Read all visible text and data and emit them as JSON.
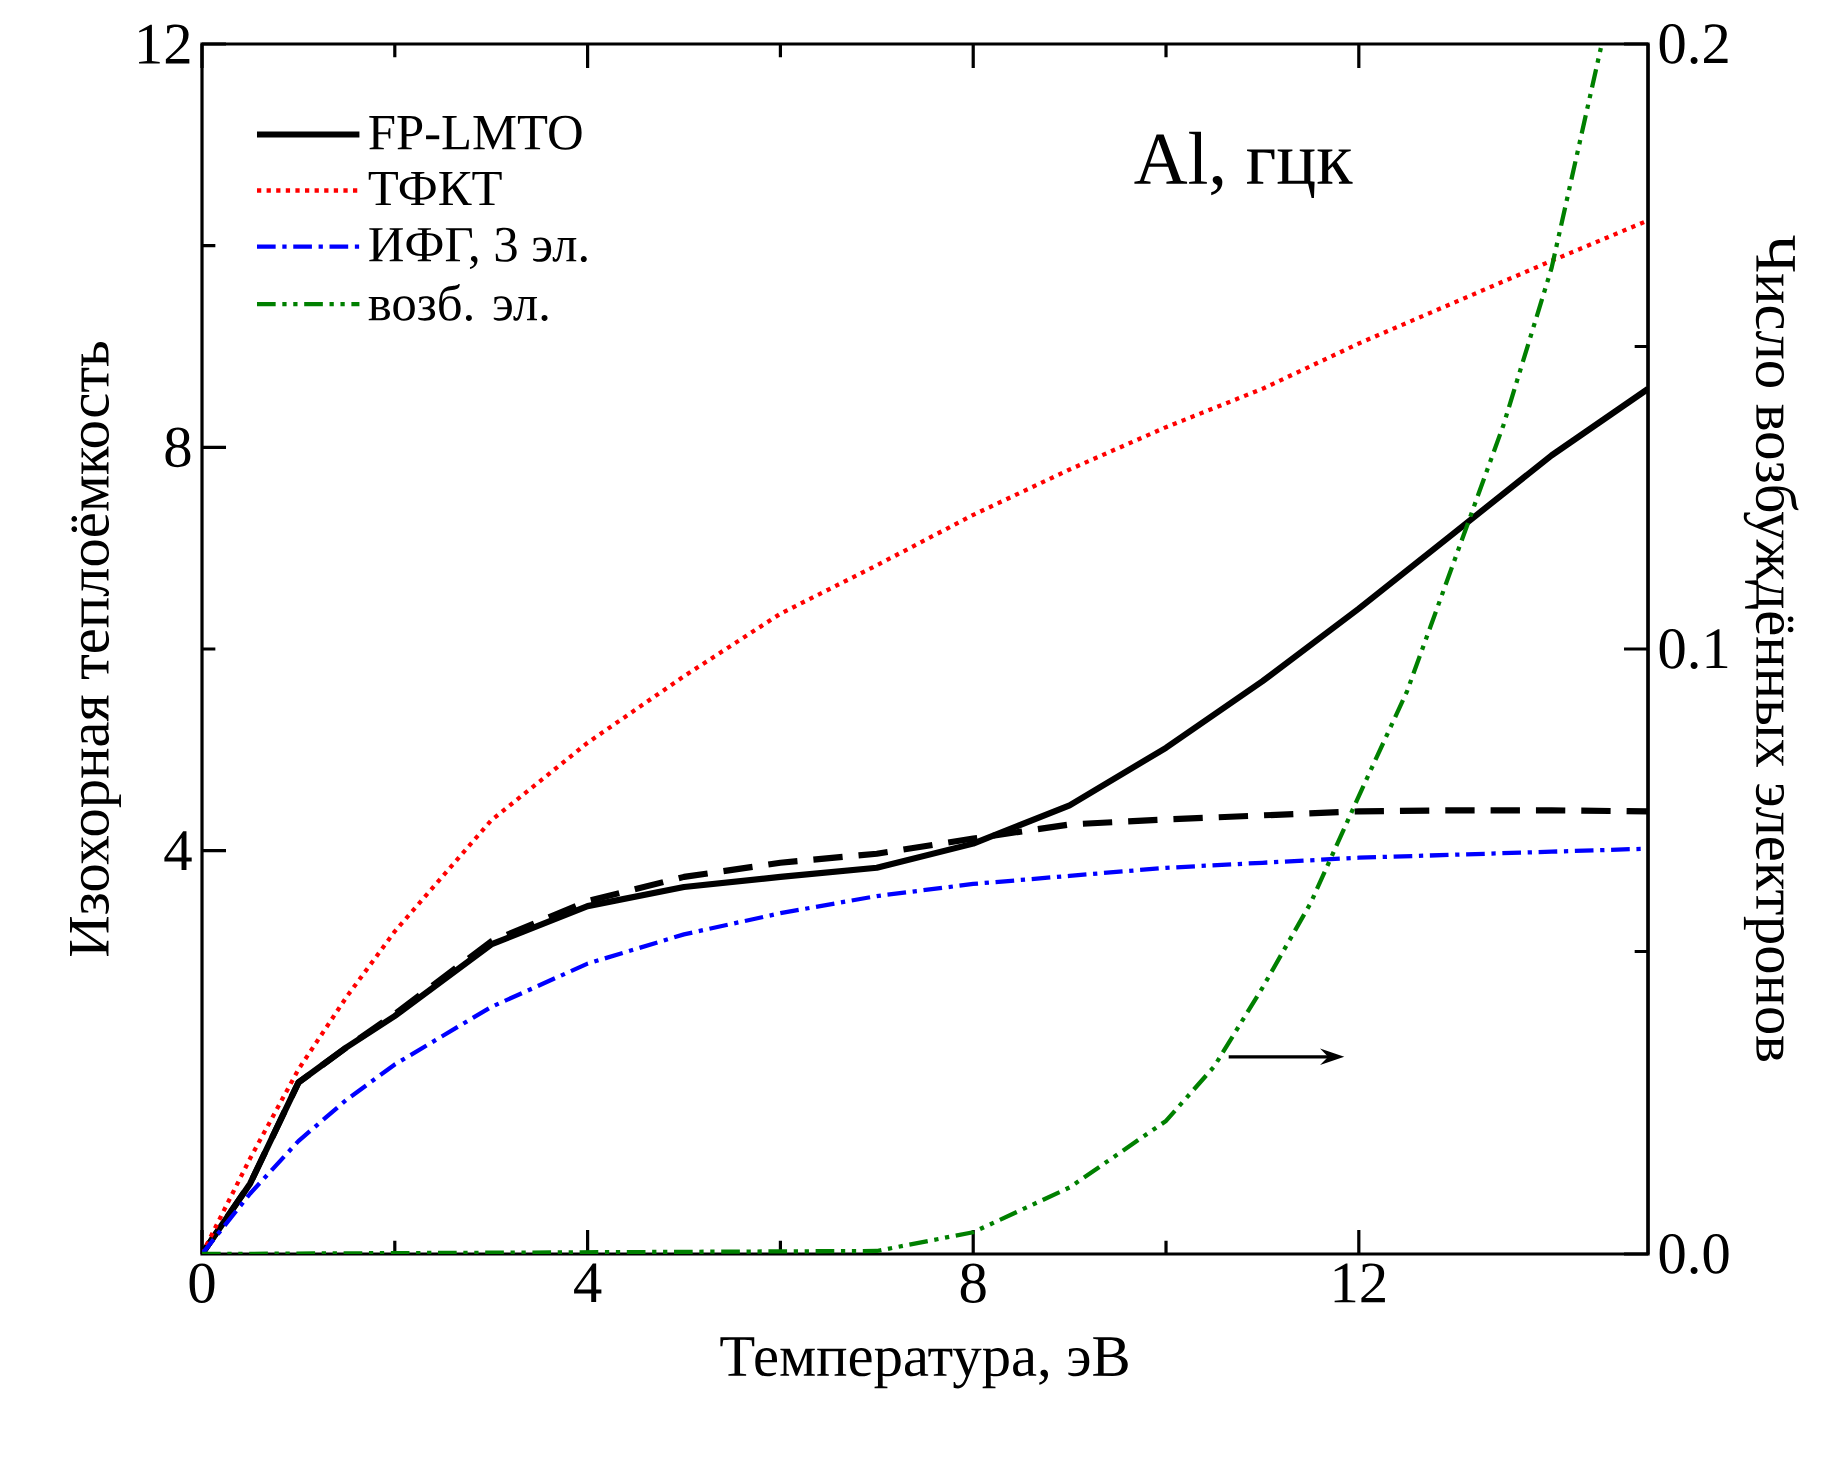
{
  "chart_data": {
    "type": "line",
    "xlabel": "Температура, эВ",
    "ylabel": "Изохорная теплоёмкость",
    "y2label": "Число возбуждённых электронов",
    "annotations": [
      "Al, гцк"
    ],
    "x": [
      0,
      0.5,
      1,
      1.5,
      2,
      3,
      4,
      5,
      6,
      7,
      8,
      9,
      10,
      11,
      12,
      13,
      14,
      15
    ],
    "series": [
      {
        "name": "FP-LMTO",
        "color": "#000000",
        "line_style": "solid",
        "values": [
          0,
          0.7,
          1.7,
          2.05,
          2.36,
          3.07,
          3.45,
          3.64,
          3.74,
          3.83,
          4.07,
          4.45,
          5.02,
          5.68,
          6.4,
          7.16,
          7.92,
          8.58
        ]
      },
      {
        "color": "#000000",
        "line_style": "dashed",
        "values": [
          0,
          0.7,
          1.7,
          2.05,
          2.38,
          3.1,
          3.5,
          3.74,
          3.88,
          3.97,
          4.12,
          4.26,
          4.31,
          4.35,
          4.39,
          4.4,
          4.4,
          4.39
        ]
      },
      {
        "name": "ТФКТ",
        "color": "#ff0000",
        "line_style": "dotted",
        "values": [
          0,
          0.95,
          1.83,
          2.55,
          3.2,
          4.3,
          5.07,
          5.73,
          6.35,
          6.83,
          7.33,
          7.78,
          8.2,
          8.58,
          9.03,
          9.44,
          9.85,
          10.25
        ]
      },
      {
        "name": "ИФГ, 3 эл.",
        "color": "#0000ff",
        "line_style": "dashdot",
        "values": [
          0,
          0.6,
          1.12,
          1.53,
          1.88,
          2.45,
          2.88,
          3.17,
          3.38,
          3.55,
          3.67,
          3.75,
          3.83,
          3.88,
          3.93,
          3.96,
          3.99,
          4.02
        ]
      },
      {
        "name": "возб. эл.",
        "color": "#008000",
        "line_style": "dashdotdot",
        "axis": "y2",
        "x": [
          0,
          7,
          8,
          9,
          10,
          10.5,
          11,
          11.5,
          12,
          12.5,
          13,
          13.5,
          14,
          14.52
        ],
        "values": [
          0,
          0.0005,
          0.0036,
          0.011,
          0.022,
          0.031,
          0.044,
          0.058,
          0.0757,
          0.093,
          0.115,
          0.137,
          0.163,
          0.2
        ]
      }
    ],
    "xlim": [
      0,
      15
    ],
    "xticks": [
      0,
      4,
      8,
      12
    ],
    "ylim": [
      0,
      12
    ],
    "yticks": [
      4,
      8,
      12
    ],
    "y2lim": [
      0,
      0.2
    ],
    "y2ticks": [
      {
        "value": 0,
        "label": "0.0"
      },
      {
        "value": 0.1,
        "label": "0.1"
      },
      {
        "value": 0.2,
        "label": "0.2"
      }
    ],
    "legend": "top left"
  }
}
